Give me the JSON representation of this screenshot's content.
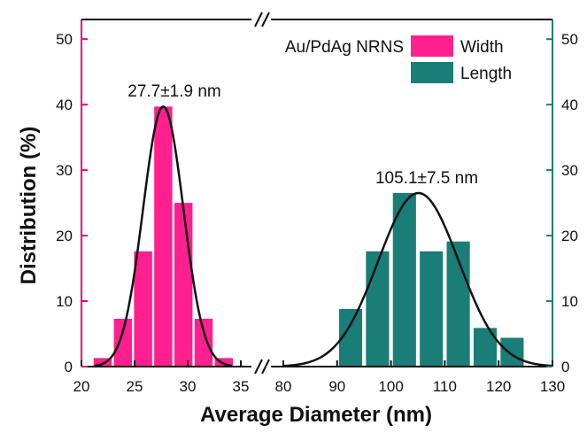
{
  "chart_data": {
    "type": "bar",
    "title": "",
    "xlabel": "Average Diameter (nm)",
    "ylabel": "Distribution (%)",
    "ylim": [
      0,
      53
    ],
    "ytick_values": [
      0,
      10,
      20,
      30,
      40,
      50
    ],
    "axis_break": true,
    "legend": {
      "title": "Au/PdAg NRNS",
      "placement": "top-right",
      "entries": [
        {
          "label": "Width",
          "color": "#ff1f8e"
        },
        {
          "label": "Length",
          "color": "#1a7d77"
        }
      ]
    },
    "panels": [
      {
        "xlim": [
          20,
          35
        ],
        "xtick_values": [
          20,
          25,
          30,
          35
        ],
        "xtick_labels": [
          "20",
          "25",
          "30",
          "35"
        ],
        "axis_color": "#e6007a"
      },
      {
        "xlim": [
          80,
          130
        ],
        "xtick_values": [
          80,
          90,
          100,
          110,
          120,
          130
        ],
        "xtick_labels": [
          "80",
          "90",
          "100",
          "110",
          "120",
          "130"
        ],
        "axis_color": "#1a7d77"
      }
    ],
    "series": [
      {
        "name": "Width",
        "color": "#ff1f8e",
        "panel": 0,
        "bin_width": 1.7,
        "x": [
          22.0,
          23.9,
          25.8,
          27.7,
          29.6,
          31.5,
          33.4
        ],
        "values": [
          1.3,
          7.3,
          17.6,
          39.7,
          25.0,
          7.3,
          1.3
        ],
        "fit": {
          "mean": 27.7,
          "sd": 1.9,
          "peak": 39.7
        },
        "annotation": "27.7±1.9 nm"
      },
      {
        "name": "Length",
        "color": "#1a7d77",
        "panel": 1,
        "bin_width": 4.3,
        "x": [
          92.5,
          97.5,
          102.5,
          107.5,
          112.5,
          117.5,
          122.5
        ],
        "values": [
          8.8,
          17.6,
          26.5,
          17.6,
          19.1,
          5.9,
          4.4
        ],
        "fit": {
          "mean": 105.1,
          "sd": 7.5,
          "peak": 26.5
        },
        "annotation": "105.1±7.5 nm"
      }
    ]
  }
}
